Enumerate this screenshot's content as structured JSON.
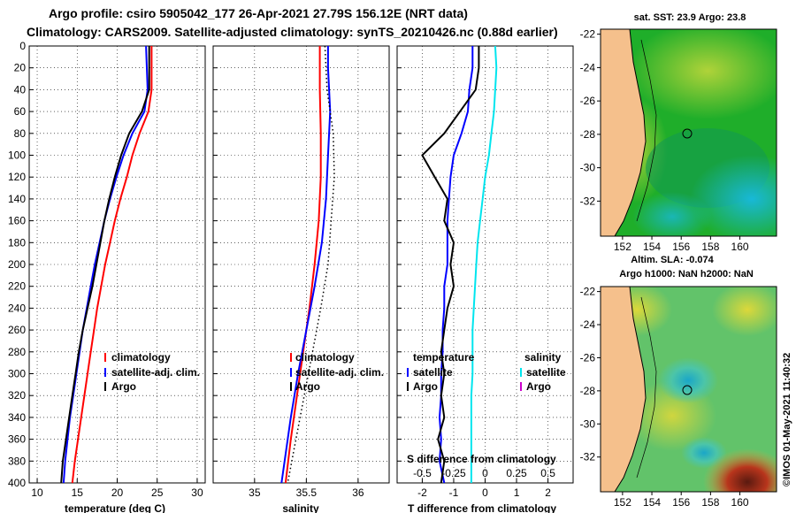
{
  "title": {
    "line1": "Argo profile: csiro 5905042_177 26-Apr-2021 27.79S 156.12E (NRT data)",
    "line2": "Climatology: CARS2009. Satellite-adjusted climatology: synTS_20210426.nc (0.88d earlier)"
  },
  "colors": {
    "climatology": "#ff0000",
    "satellite": "#0000ff",
    "argo": "#000000",
    "sat_salinity": "#00e5ee",
    "argo_salinity": "#cc00cc"
  },
  "chart_data": [
    {
      "name": "temperature",
      "type": "line",
      "xlabel": "temperature (deg C)",
      "xlim": [
        9,
        31
      ],
      "xticks": [
        10,
        15,
        20,
        25,
        30
      ],
      "ylim": [
        400,
        0
      ],
      "yticks": [
        0,
        20,
        40,
        60,
        80,
        100,
        120,
        140,
        160,
        180,
        200,
        220,
        240,
        260,
        280,
        300,
        320,
        340,
        360,
        380,
        400
      ],
      "series": [
        {
          "name": "climatology",
          "role": "climatology",
          "points": [
            [
              24.3,
              0
            ],
            [
              24.3,
              20
            ],
            [
              24.3,
              40
            ],
            [
              23.9,
              60
            ],
            [
              22.8,
              80
            ],
            [
              21.9,
              100
            ],
            [
              21.2,
              120
            ],
            [
              20.4,
              140
            ],
            [
              19.7,
              160
            ],
            [
              19.1,
              180
            ],
            [
              18.5,
              200
            ],
            [
              18.0,
              220
            ],
            [
              17.5,
              240
            ],
            [
              17.1,
              260
            ],
            [
              16.7,
              280
            ],
            [
              16.3,
              300
            ],
            [
              15.9,
              320
            ],
            [
              15.5,
              340
            ],
            [
              15.1,
              360
            ],
            [
              14.7,
              380
            ],
            [
              14.4,
              400
            ]
          ]
        },
        {
          "name": "satellite-adj. clim.",
          "role": "satellite",
          "points": [
            [
              23.6,
              0
            ],
            [
              23.7,
              20
            ],
            [
              23.8,
              40
            ],
            [
              23.4,
              60
            ],
            [
              21.9,
              80
            ],
            [
              20.8,
              100
            ],
            [
              19.9,
              120
            ],
            [
              19.1,
              140
            ],
            [
              18.4,
              160
            ],
            [
              17.8,
              180
            ],
            [
              17.2,
              200
            ],
            [
              16.7,
              220
            ],
            [
              16.2,
              240
            ],
            [
              15.7,
              260
            ],
            [
              15.3,
              280
            ],
            [
              14.9,
              300
            ],
            [
              14.5,
              320
            ],
            [
              14.1,
              340
            ],
            [
              13.8,
              360
            ],
            [
              13.5,
              380
            ],
            [
              13.3,
              400
            ]
          ]
        },
        {
          "name": "Argo",
          "role": "argo",
          "points": [
            [
              24.0,
              0
            ],
            [
              24.0,
              20
            ],
            [
              24.0,
              40
            ],
            [
              23.1,
              60
            ],
            [
              21.5,
              80
            ],
            [
              20.5,
              100
            ],
            [
              19.7,
              120
            ],
            [
              19.0,
              140
            ],
            [
              18.4,
              160
            ],
            [
              17.9,
              180
            ],
            [
              17.4,
              200
            ],
            [
              16.9,
              220
            ],
            [
              16.3,
              240
            ],
            [
              15.7,
              260
            ],
            [
              15.2,
              280
            ],
            [
              14.8,
              300
            ],
            [
              14.4,
              320
            ],
            [
              14.0,
              340
            ],
            [
              13.6,
              360
            ],
            [
              13.2,
              380
            ],
            [
              13.0,
              400
            ]
          ]
        }
      ],
      "legend": [
        "climatology",
        "satellite-adj. clim.",
        "Argo"
      ]
    },
    {
      "name": "salinity",
      "type": "line",
      "xlabel": "salinity",
      "xlim": [
        34.6,
        36.3
      ],
      "xticks": [
        35,
        35.5,
        36
      ],
      "xtick_labels": [
        "35",
        "35.5",
        "36"
      ],
      "ylim": [
        400,
        0
      ],
      "series": [
        {
          "name": "climatology",
          "role": "climatology",
          "points": [
            [
              35.63,
              0
            ],
            [
              35.63,
              40
            ],
            [
              35.64,
              80
            ],
            [
              35.64,
              120
            ],
            [
              35.62,
              160
            ],
            [
              35.58,
              200
            ],
            [
              35.53,
              240
            ],
            [
              35.47,
              280
            ],
            [
              35.41,
              320
            ],
            [
              35.35,
              360
            ],
            [
              35.3,
              400
            ]
          ]
        },
        {
          "name": "satellite-adj. clim.",
          "role": "satellite",
          "points": [
            [
              35.71,
              0
            ],
            [
              35.71,
              20
            ],
            [
              35.72,
              40
            ],
            [
              35.73,
              60
            ],
            [
              35.71,
              100
            ],
            [
              35.69,
              140
            ],
            [
              35.65,
              180
            ],
            [
              35.58,
              220
            ],
            [
              35.5,
              260
            ],
            [
              35.42,
              300
            ],
            [
              35.35,
              340
            ],
            [
              35.29,
              380
            ],
            [
              35.26,
              400
            ]
          ]
        },
        {
          "name": "Argo",
          "role": "argo",
          "points": [
            [
              35.68,
              0
            ],
            [
              35.7,
              40
            ],
            [
              35.76,
              80
            ],
            [
              35.77,
              120
            ],
            [
              35.74,
              160
            ],
            [
              35.71,
              200
            ],
            [
              35.64,
              240
            ],
            [
              35.56,
              280
            ],
            [
              35.48,
              320
            ],
            [
              35.4,
              360
            ],
            [
              35.32,
              400
            ]
          ],
          "dotted": true
        }
      ],
      "legend": [
        "climatology",
        "satellite-adj. clim.",
        "Argo"
      ]
    },
    {
      "name": "difference",
      "type": "line",
      "xlabel": "T difference from climatology",
      "xlim": [
        -2.8,
        2.8
      ],
      "xticks": [
        -2,
        -1,
        0,
        1,
        2
      ],
      "top_axis_label": "S difference from climatology",
      "top_ticks": [
        -0.5,
        -0.25,
        0,
        0.25,
        0.5
      ],
      "top_tick_labels": [
        "-0.5",
        "-0.25",
        "0",
        "0.25",
        "0.5"
      ],
      "ylim": [
        400,
        0
      ],
      "legend_titles": [
        "temperature",
        "salinity"
      ],
      "legend_temperature": [
        "satellite",
        "Argo"
      ],
      "legend_salinity": [
        "satellite",
        "Argo"
      ],
      "series": [
        {
          "name": "temperature satellite",
          "role": "satellite",
          "points": [
            [
              -0.4,
              0
            ],
            [
              -0.4,
              20
            ],
            [
              -0.5,
              40
            ],
            [
              -0.55,
              60
            ],
            [
              -0.75,
              80
            ],
            [
              -1.0,
              100
            ],
            [
              -1.1,
              120
            ],
            [
              -1.15,
              140
            ],
            [
              -1.2,
              160
            ],
            [
              -1.2,
              180
            ],
            [
              -1.2,
              200
            ],
            [
              -1.3,
              220
            ],
            [
              -1.3,
              240
            ],
            [
              -1.35,
              260
            ],
            [
              -1.35,
              280
            ],
            [
              -1.4,
              300
            ],
            [
              -1.4,
              320
            ],
            [
              -1.45,
              340
            ],
            [
              -1.4,
              360
            ],
            [
              -1.45,
              380
            ],
            [
              -1.3,
              400
            ]
          ]
        },
        {
          "name": "temperature Argo",
          "role": "argo",
          "points": [
            [
              -0.2,
              0
            ],
            [
              -0.2,
              20
            ],
            [
              -0.3,
              40
            ],
            [
              -0.8,
              60
            ],
            [
              -1.3,
              80
            ],
            [
              -2.0,
              100
            ],
            [
              -1.6,
              120
            ],
            [
              -1.2,
              140
            ],
            [
              -1.3,
              160
            ],
            [
              -1.0,
              180
            ],
            [
              -1.1,
              200
            ],
            [
              -1.0,
              220
            ],
            [
              -1.2,
              240
            ],
            [
              -1.3,
              260
            ],
            [
              -1.4,
              280
            ],
            [
              -1.3,
              300
            ],
            [
              -1.4,
              320
            ],
            [
              -1.3,
              340
            ],
            [
              -1.5,
              360
            ],
            [
              -1.3,
              380
            ],
            [
              -1.4,
              400
            ]
          ]
        },
        {
          "name": "salinity satellite",
          "role": "sat_salinity",
          "axis": "top",
          "points": [
            [
              0.08,
              0
            ],
            [
              0.09,
              20
            ],
            [
              0.08,
              40
            ],
            [
              0.07,
              60
            ],
            [
              0.05,
              80
            ],
            [
              0.03,
              100
            ],
            [
              0.0,
              120
            ],
            [
              -0.02,
              140
            ],
            [
              -0.04,
              160
            ],
            [
              -0.06,
              180
            ],
            [
              -0.07,
              200
            ],
            [
              -0.08,
              220
            ],
            [
              -0.09,
              240
            ],
            [
              -0.1,
              260
            ],
            [
              -0.1,
              280
            ],
            [
              -0.1,
              300
            ],
            [
              -0.11,
              320
            ],
            [
              -0.11,
              340
            ],
            [
              -0.11,
              360
            ],
            [
              -0.11,
              380
            ],
            [
              -0.11,
              400
            ]
          ]
        }
      ]
    }
  ],
  "maps": {
    "sst": {
      "title": "sat. SST: 23.9 Argo: 23.8",
      "x_ticks": [
        "152",
        "154",
        "156",
        "158",
        "160"
      ],
      "y_ticks": [
        "-22",
        "-24",
        "-26",
        "-28",
        "-30",
        "-32"
      ]
    },
    "sla": {
      "title1": "Altim. SLA: -0.074",
      "title2": "Argo h1000: NaN h2000: NaN",
      "x_ticks": [
        "152",
        "154",
        "156",
        "158",
        "160"
      ],
      "y_ticks": [
        "-22",
        "-24",
        "-26",
        "-28",
        "-30",
        "-32"
      ]
    }
  },
  "credit": "©IMOS 01-May-2021 11:40:32"
}
